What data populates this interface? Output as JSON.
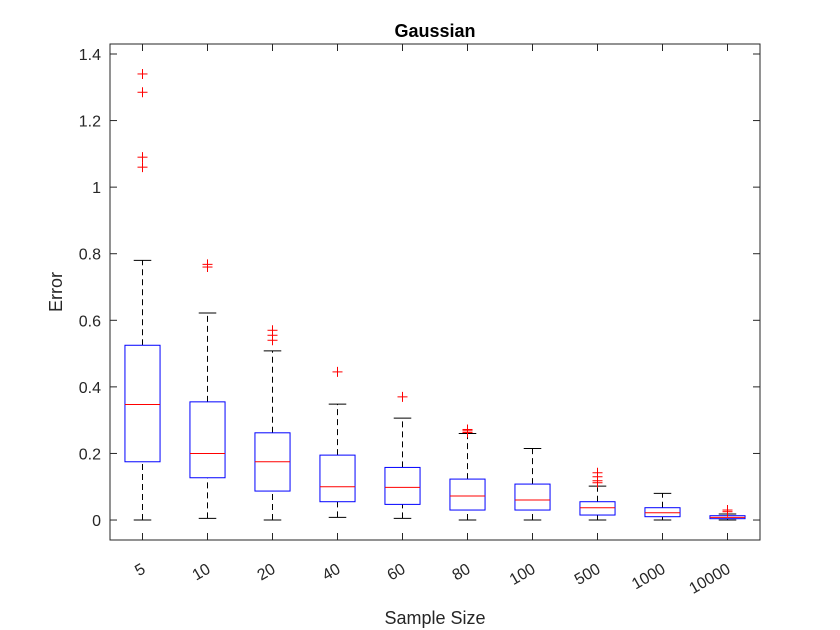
{
  "chart_data": {
    "type": "boxplot",
    "title": "Gaussian",
    "xlabel": "Sample Size",
    "ylabel": "Error",
    "ylim": [
      -0.06,
      1.43
    ],
    "yticks": [
      0,
      0.2,
      0.4,
      0.6,
      0.8,
      1,
      1.2,
      1.4
    ],
    "ytick_labels": [
      "0",
      "0.2",
      "0.4",
      "0.6",
      "0.8",
      "1",
      "1.2",
      "1.4"
    ],
    "categories": [
      "5",
      "10",
      "20",
      "40",
      "60",
      "80",
      "100",
      "500",
      "1000",
      "10000"
    ],
    "grid": false,
    "box_color": "#0000ff",
    "median_color": "#ff0000",
    "whisker_color": "#000000",
    "outlier_color": "#ff0000",
    "boxes": [
      {
        "whisker_low": 0.0,
        "q1": 0.175,
        "median": 0.347,
        "q3": 0.525,
        "whisker_high": 0.78,
        "outliers": [
          1.06,
          1.09,
          1.285,
          1.34
        ]
      },
      {
        "whisker_low": 0.005,
        "q1": 0.127,
        "median": 0.2,
        "q3": 0.355,
        "whisker_high": 0.622,
        "outliers": [
          0.76,
          0.768
        ]
      },
      {
        "whisker_low": 0.0,
        "q1": 0.087,
        "median": 0.175,
        "q3": 0.262,
        "whisker_high": 0.508,
        "outliers": [
          0.54,
          0.555,
          0.57
        ]
      },
      {
        "whisker_low": 0.008,
        "q1": 0.055,
        "median": 0.1,
        "q3": 0.195,
        "whisker_high": 0.348,
        "outliers": [
          0.445
        ]
      },
      {
        "whisker_low": 0.005,
        "q1": 0.047,
        "median": 0.098,
        "q3": 0.158,
        "whisker_high": 0.306,
        "outliers": [
          0.37
        ]
      },
      {
        "whisker_low": 0.0,
        "q1": 0.03,
        "median": 0.072,
        "q3": 0.123,
        "whisker_high": 0.26,
        "outliers": [
          0.263,
          0.268,
          0.272
        ]
      },
      {
        "whisker_low": 0.0,
        "q1": 0.03,
        "median": 0.06,
        "q3": 0.108,
        "whisker_high": 0.215,
        "outliers": []
      },
      {
        "whisker_low": 0.0,
        "q1": 0.015,
        "median": 0.037,
        "q3": 0.055,
        "whisker_high": 0.102,
        "outliers": [
          0.112,
          0.118,
          0.13,
          0.142
        ]
      },
      {
        "whisker_low": 0.0,
        "q1": 0.01,
        "median": 0.022,
        "q3": 0.037,
        "whisker_high": 0.08,
        "outliers": []
      },
      {
        "whisker_low": 0.0,
        "q1": 0.004,
        "median": 0.008,
        "q3": 0.013,
        "whisker_high": 0.018,
        "outliers": [
          0.025,
          0.03
        ]
      }
    ]
  }
}
